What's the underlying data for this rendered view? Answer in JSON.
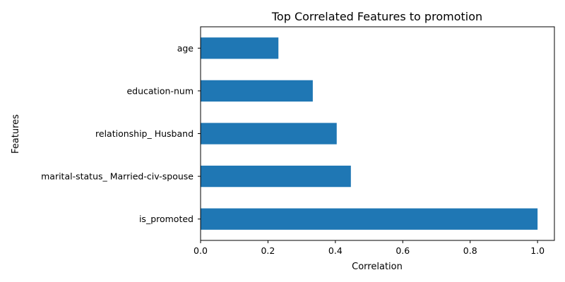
{
  "chart_data": {
    "type": "bar",
    "orientation": "horizontal",
    "title": "Top Correlated Features to promotion",
    "xlabel": "Correlation",
    "ylabel": "Features",
    "categories": [
      "is_promoted",
      "marital-status_ Married-civ-spouse",
      "relationship_ Husband",
      "education-num",
      "age"
    ],
    "values": [
      1.0,
      0.446,
      0.404,
      0.333,
      0.231
    ],
    "xlim": [
      0,
      1.05
    ],
    "xticks": [
      0.0,
      0.2,
      0.4,
      0.6,
      0.8,
      1.0
    ],
    "xtick_labels": [
      "0.0",
      "0.2",
      "0.4",
      "0.6",
      "0.8",
      "1.0"
    ],
    "bar_color": "#1f77b4",
    "grid": false,
    "legend": "none"
  }
}
